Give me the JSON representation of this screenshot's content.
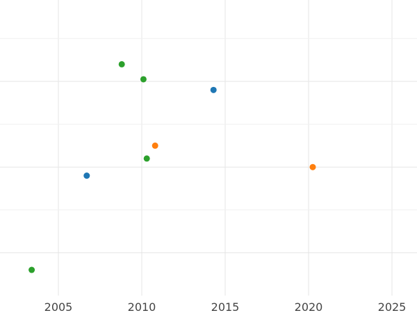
{
  "chart_data": {
    "type": "scatter",
    "title": "",
    "xlabel": "",
    "ylabel": "",
    "x_ticks": [
      2005,
      2010,
      2015,
      2020,
      2025
    ],
    "xlim": [
      2001.5,
      2026.5
    ],
    "ylim": [
      0,
      6.9
    ],
    "y_gridlines_major": [
      1,
      3,
      5
    ],
    "y_gridlines_minor": [
      2,
      4,
      6
    ],
    "grid": true,
    "legend": "none",
    "series": [
      {
        "color": "#1f77b4",
        "points": [
          {
            "x": 2006.7,
            "y": 2.8
          },
          {
            "x": 2014.3,
            "y": 4.8
          }
        ]
      },
      {
        "color": "#ff7f0e",
        "points": [
          {
            "x": 2010.8,
            "y": 3.5
          },
          {
            "x": 2020.25,
            "y": 3.0
          }
        ]
      },
      {
        "color": "#2ca02c",
        "points": [
          {
            "x": 2003.4,
            "y": 0.6
          },
          {
            "x": 2008.8,
            "y": 5.4
          },
          {
            "x": 2010.1,
            "y": 5.05
          },
          {
            "x": 2010.3,
            "y": 3.2
          }
        ]
      }
    ]
  }
}
